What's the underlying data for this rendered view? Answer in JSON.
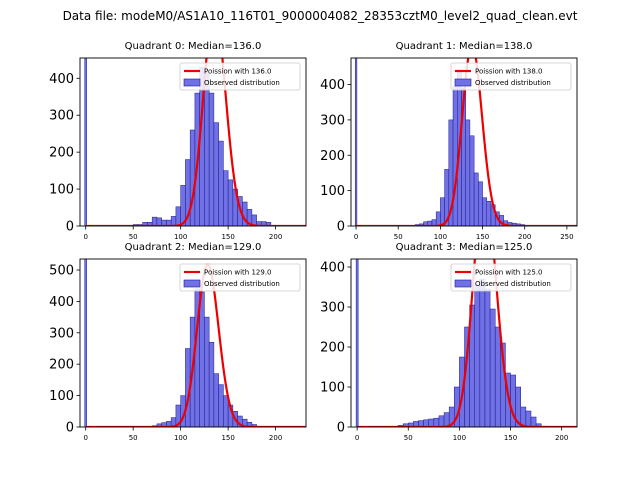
{
  "figure": {
    "suptitle": "Data file: modeM0/AS1A10_116T01_9000004082_28353cztM0_level2_quad_clean.evt"
  },
  "chart_data": [
    {
      "type": "bar",
      "title": "Quadrant 0: Median=136.0",
      "median": 136.0,
      "xlim": [
        -6,
        232
      ],
      "ylim": [
        0,
        455
      ],
      "xticks": [
        0,
        50,
        100,
        150,
        200
      ],
      "yticks": [
        0,
        100,
        200,
        300,
        400
      ],
      "bin_width": 5,
      "zero_bar": {
        "x": 0,
        "value": 455
      },
      "bin_start": 45,
      "values": [
        2,
        4,
        4,
        10,
        10,
        24,
        22,
        16,
        16,
        26,
        52,
        110,
        180,
        260,
        360,
        430,
        415,
        360,
        280,
        230,
        150,
        125,
        100,
        80,
        65,
        45,
        30,
        12,
        12,
        10
      ],
      "legend": {
        "poisson": "Poission with 136.0",
        "observed": "Observed distribution"
      }
    },
    {
      "type": "bar",
      "title": "Quadrant 1: Median=138.0",
      "median": 138.0,
      "xlim": [
        -6,
        262
      ],
      "ylim": [
        0,
        475
      ],
      "xticks": [
        0,
        50,
        100,
        150,
        200,
        250
      ],
      "yticks": [
        0,
        100,
        200,
        300,
        400
      ],
      "bin_width": 5,
      "zero_bar": {
        "x": 0,
        "value": 475
      },
      "bin_start": 60,
      "values": [
        1,
        2,
        4,
        6,
        12,
        14,
        18,
        40,
        80,
        160,
        300,
        395,
        435,
        390,
        300,
        255,
        150,
        125,
        80,
        70,
        60,
        40,
        30,
        15,
        10,
        8,
        6,
        4,
        2
      ],
      "legend": {
        "poisson": "Poission with 138.0",
        "observed": "Observed distribution"
      }
    },
    {
      "type": "bar",
      "title": "Quadrant 2: Median=129.0",
      "median": 129.0,
      "xlim": [
        -6,
        232
      ],
      "ylim": [
        0,
        535
      ],
      "xticks": [
        0,
        50,
        100,
        150,
        200
      ],
      "yticks": [
        0,
        100,
        200,
        300,
        400,
        500
      ],
      "bin_width": 5,
      "zero_bar": {
        "x": 0,
        "value": 535
      },
      "bin_start": 65,
      "values": [
        2,
        4,
        10,
        14,
        18,
        30,
        70,
        100,
        250,
        350,
        440,
        430,
        350,
        270,
        170,
        135,
        100,
        70,
        50,
        35,
        25,
        15,
        8
      ],
      "legend": {
        "poisson": "Poission with 129.0",
        "observed": "Observed distribution"
      }
    },
    {
      "type": "bar",
      "title": "Quadrant 3: Median=125.0",
      "median": 125.0,
      "xlim": [
        -6,
        215
      ],
      "ylim": [
        0,
        420
      ],
      "xticks": [
        0,
        50,
        100,
        150,
        200
      ],
      "yticks": [
        0,
        100,
        200,
        300,
        400
      ],
      "bin_width": 5,
      "zero_bar": {
        "x": 0,
        "value": 420
      },
      "bin_start": 40,
      "values": [
        4,
        8,
        10,
        14,
        16,
        18,
        20,
        22,
        28,
        36,
        50,
        100,
        175,
        250,
        305,
        355,
        370,
        345,
        295,
        250,
        210,
        135,
        130,
        100,
        50,
        40,
        25,
        8,
        2,
        1
      ],
      "legend": {
        "poisson": "Poission with 125.0",
        "observed": "Observed distribution"
      }
    }
  ]
}
